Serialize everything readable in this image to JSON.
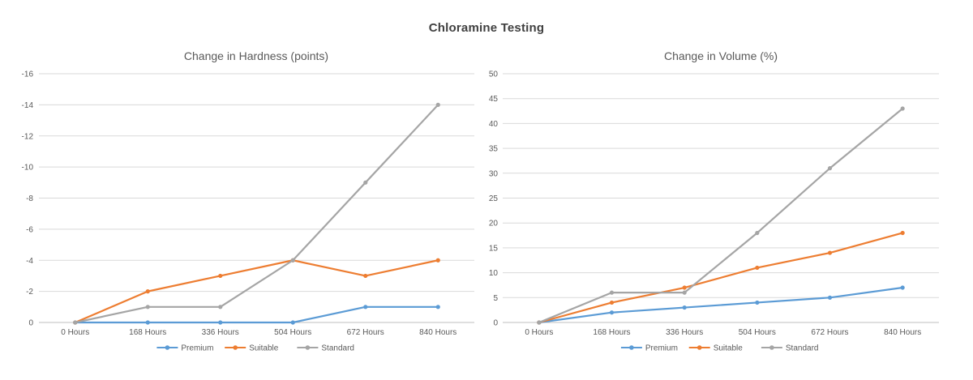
{
  "page_title": "Chloramine Testing",
  "colors": {
    "main_title_text": "#404040",
    "chart_title_text": "#595959",
    "tick_text": "#595959",
    "gridline": "#D9D9D9",
    "axis_line": "#BFBFBF",
    "premium": "#5B9BD5",
    "suitable": "#ED7D31",
    "standard": "#A5A5A5"
  },
  "chart_data": [
    {
      "type": "line",
      "title": "Change in Hardness (points)",
      "categories": [
        "0 Hours",
        "168 Hours",
        "336 Hours",
        "504 Hours",
        "672 Hours",
        "840 Hours"
      ],
      "series": [
        {
          "name": "Premium",
          "color": "#5B9BD5",
          "values": [
            0,
            0,
            0,
            0,
            -1,
            -1
          ]
        },
        {
          "name": "Suitable",
          "color": "#ED7D31",
          "values": [
            0,
            -2,
            -3,
            -4,
            -3,
            -4
          ]
        },
        {
          "name": "Standard",
          "color": "#A5A5A5",
          "values": [
            0,
            -1,
            -1,
            -4,
            -9,
            -14
          ]
        }
      ],
      "ylim": [
        0,
        -16
      ],
      "yticks": [
        0,
        -2,
        -4,
        -6,
        -8,
        -10,
        -12,
        -14,
        -16
      ],
      "grid": true,
      "legend_position": "bottom",
      "legend": [
        "Premium",
        "Suitable",
        "Standard"
      ]
    },
    {
      "type": "line",
      "title": "Change in Volume (%)",
      "categories": [
        "0 Hours",
        "168 Hours",
        "336 Hours",
        "504 Hours",
        "672 Hours",
        "840 Hours"
      ],
      "series": [
        {
          "name": "Premium",
          "color": "#5B9BD5",
          "values": [
            0,
            2,
            3,
            4,
            5,
            7
          ]
        },
        {
          "name": "Suitable",
          "color": "#ED7D31",
          "values": [
            0,
            4,
            7,
            11,
            14,
            18
          ]
        },
        {
          "name": "Standard",
          "color": "#A5A5A5",
          "values": [
            0,
            6,
            6,
            18,
            31,
            43
          ]
        }
      ],
      "ylim": [
        0,
        50
      ],
      "yticks": [
        0,
        5,
        10,
        15,
        20,
        25,
        30,
        35,
        40,
        45,
        50
      ],
      "grid": true,
      "legend_position": "bottom",
      "legend": [
        "Premium",
        "Suitable",
        "Standard"
      ]
    }
  ]
}
